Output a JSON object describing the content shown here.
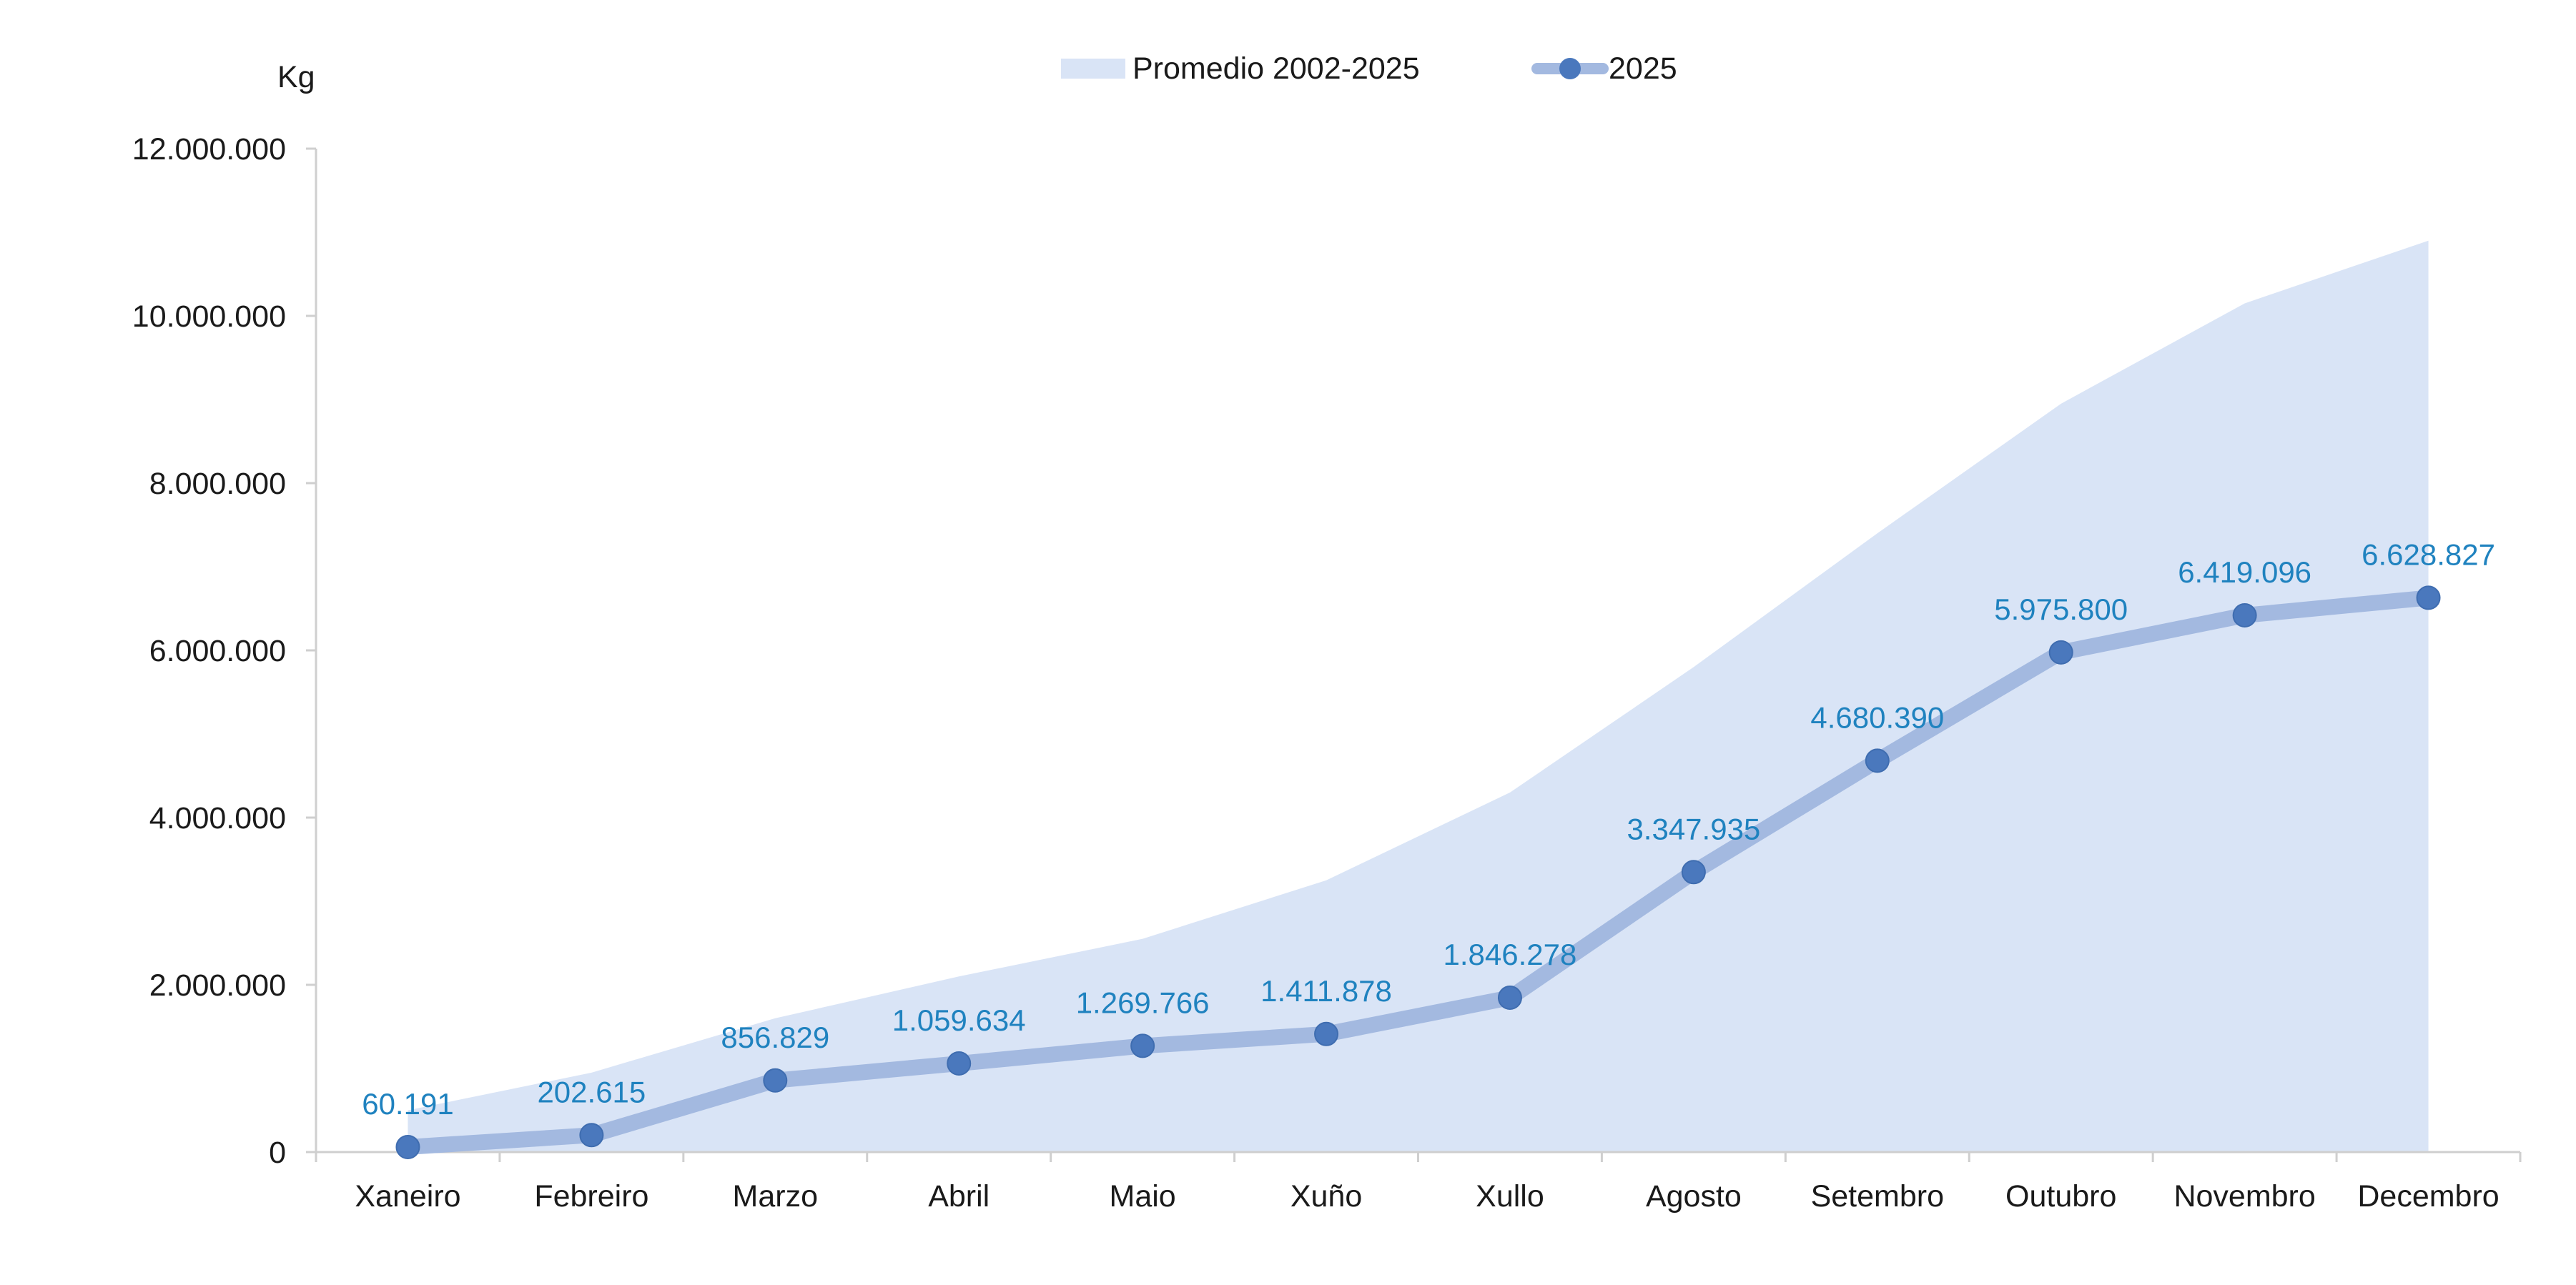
{
  "chart_data": {
    "type": "line",
    "ylabel": "Kg",
    "ylim": [
      0,
      12000000
    ],
    "yticks": [
      "0",
      "2.000.000",
      "4.000.000",
      "6.000.000",
      "8.000.000",
      "10.000.000",
      "12.000.000"
    ],
    "ytick_values": [
      0,
      2000000,
      4000000,
      6000000,
      8000000,
      10000000,
      12000000
    ],
    "categories": [
      "Xaneiro",
      "Febreiro",
      "Marzo",
      "Abril",
      "Maio",
      "Xuño",
      "Xullo",
      "Agosto",
      "Setembro",
      "Outubro",
      "Novembro",
      "Decembro"
    ],
    "grid": false,
    "legend_position": "top-center",
    "series": [
      {
        "name": "Promedio 2002-2025",
        "type": "area",
        "color": "#d9e4f6",
        "values": [
          500000,
          950000,
          1600000,
          2100000,
          2550000,
          3250000,
          4300000,
          5800000,
          7400000,
          8950000,
          10150000,
          10900000
        ]
      },
      {
        "name": "2025",
        "type": "line",
        "line_color": "#a3b9e0",
        "marker_color": "#4a78bd",
        "values": [
          60191,
          202615,
          856829,
          1059634,
          1269766,
          1411878,
          1846278,
          3347935,
          4680390,
          5975800,
          6419096,
          6628827
        ],
        "labels": [
          "60.191",
          "202.615",
          "856.829",
          "1.059.634",
          "1.269.766",
          "1.411.878",
          "1.846.278",
          "3.347.935",
          "4.680.390",
          "5.975.800",
          "6.419.096",
          "6.628.827"
        ],
        "label_color": "#1f82bf"
      }
    ]
  }
}
